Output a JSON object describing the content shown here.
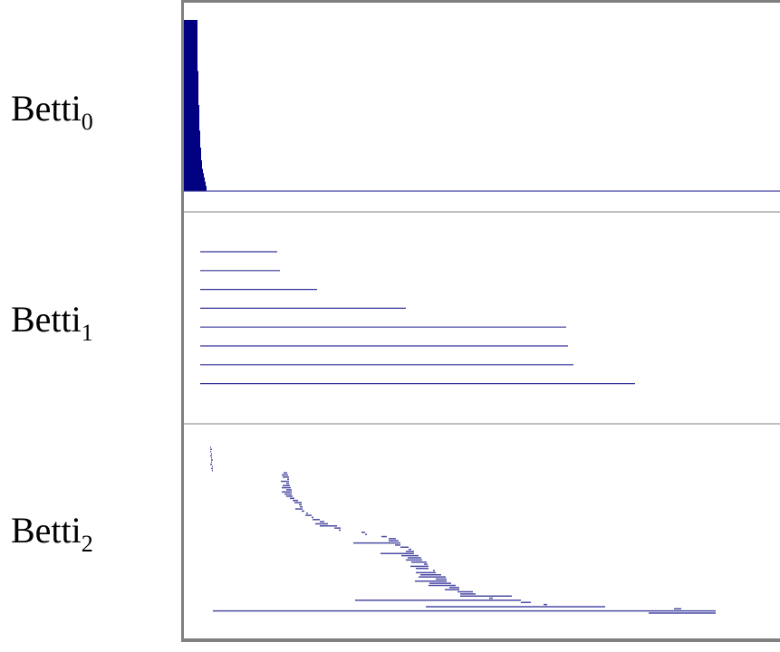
{
  "chart_data": {
    "type": "barcode",
    "xlim": [
      0,
      6.58
    ],
    "grid": false,
    "color": "#000080",
    "divider_color": "#c0c0c0",
    "frame_color": "#808080",
    "panels": [
      {
        "label": "Betti",
        "subscript": "0",
        "bars": [
          [
            0,
            0.15
          ],
          [
            0,
            0.15
          ],
          [
            0,
            0.15
          ],
          [
            0,
            0.15
          ],
          [
            0,
            0.15
          ],
          [
            0,
            0.15
          ],
          [
            0,
            0.15
          ],
          [
            0,
            0.15
          ],
          [
            0,
            0.15
          ],
          [
            0,
            0.15
          ],
          [
            0,
            0.15
          ],
          [
            0,
            0.15
          ],
          [
            0,
            0.16
          ],
          [
            0,
            0.16
          ],
          [
            0,
            0.16
          ],
          [
            0,
            0.16
          ],
          [
            0,
            0.16
          ],
          [
            0,
            0.16
          ],
          [
            0,
            0.16
          ],
          [
            0,
            0.16
          ],
          [
            0,
            0.17
          ],
          [
            0,
            0.17
          ],
          [
            0,
            0.17
          ],
          [
            0,
            0.17
          ],
          [
            0,
            0.17
          ],
          [
            0,
            0.17
          ],
          [
            0,
            0.18
          ],
          [
            0,
            0.18
          ],
          [
            0,
            0.18
          ],
          [
            0,
            0.18
          ],
          [
            0,
            0.19
          ],
          [
            0,
            0.19
          ],
          [
            0,
            0.19
          ],
          [
            0,
            0.2
          ],
          [
            0,
            0.2
          ],
          [
            0,
            0.21
          ],
          [
            0,
            0.22
          ],
          [
            0,
            0.23
          ],
          [
            0,
            0.24
          ],
          [
            0,
            0.25
          ],
          [
            0,
            6.58
          ]
        ]
      },
      {
        "label": "Betti",
        "subscript": "1",
        "bars": [
          [
            0.18,
            1.03
          ],
          [
            0.18,
            1.06
          ],
          [
            0.18,
            1.47
          ],
          [
            0.18,
            2.45
          ],
          [
            0.18,
            4.22
          ],
          [
            0.18,
            4.24
          ],
          [
            0.18,
            4.3
          ],
          [
            0.18,
            4.98
          ]
        ]
      },
      {
        "label": "Betti",
        "subscript": "2",
        "bars": [
          [
            0.29,
            0.3
          ],
          [
            0.29,
            0.31
          ],
          [
            0.29,
            0.3
          ],
          [
            0.3,
            0.31
          ],
          [
            0.29,
            0.31
          ],
          [
            0.3,
            0.31
          ],
          [
            0.3,
            0.32
          ],
          [
            0.3,
            0.31
          ],
          [
            0.29,
            0.31
          ],
          [
            0.31,
            0.32
          ],
          [
            0.3,
            0.32
          ],
          [
            0.31,
            0.32
          ],
          [
            1.1,
            1.14
          ],
          [
            1.08,
            1.15
          ],
          [
            1.09,
            1.16
          ],
          [
            1.14,
            1.16
          ],
          [
            1.07,
            1.16
          ],
          [
            1.13,
            1.16
          ],
          [
            1.09,
            1.17
          ],
          [
            1.08,
            1.18
          ],
          [
            1.13,
            1.19
          ],
          [
            1.08,
            1.19
          ],
          [
            1.11,
            1.19
          ],
          [
            1.13,
            1.2
          ],
          [
            1.17,
            1.22
          ],
          [
            1.2,
            1.26
          ],
          [
            1.22,
            1.3
          ],
          [
            1.27,
            1.3
          ],
          [
            1.28,
            1.31
          ],
          [
            1.23,
            1.31
          ],
          [
            1.3,
            1.33
          ],
          [
            1.35,
            1.37
          ],
          [
            1.34,
            1.41
          ],
          [
            1.41,
            1.43
          ],
          [
            1.42,
            1.5
          ],
          [
            1.5,
            1.55
          ],
          [
            1.45,
            1.59
          ],
          [
            1.5,
            1.69
          ],
          [
            1.66,
            1.73
          ],
          [
            1.71,
            1.73
          ],
          [
            1.96,
            2.0
          ],
          [
            2.0,
            2.02
          ],
          [
            2.18,
            2.24
          ],
          [
            2.26,
            2.34
          ],
          [
            2.26,
            2.37
          ],
          [
            1.87,
            2.39
          ],
          [
            2.33,
            2.39
          ],
          [
            2.39,
            2.48
          ],
          [
            2.48,
            2.51
          ],
          [
            2.45,
            2.54
          ],
          [
            2.17,
            2.54
          ],
          [
            2.4,
            2.59
          ],
          [
            2.47,
            2.62
          ],
          [
            2.45,
            2.63
          ],
          [
            2.51,
            2.68
          ],
          [
            2.65,
            2.69
          ],
          [
            2.5,
            2.7
          ],
          [
            2.56,
            2.7
          ],
          [
            2.75,
            2.77
          ],
          [
            2.56,
            2.78
          ],
          [
            2.61,
            2.84
          ],
          [
            2.59,
            2.89
          ],
          [
            2.78,
            2.9
          ],
          [
            2.55,
            2.9
          ],
          [
            2.71,
            2.95
          ],
          [
            2.7,
            3.0
          ],
          [
            2.93,
            3.04
          ],
          [
            2.88,
            3.04
          ],
          [
            3.02,
            3.19
          ],
          [
            3.05,
            3.22
          ],
          [
            3.05,
            3.62
          ],
          [
            3.37,
            3.41
          ],
          [
            1.89,
            3.72
          ],
          [
            3.72,
            3.83
          ],
          [
            3.97,
            4.01
          ],
          [
            2.67,
            4.65
          ],
          [
            5.41,
            5.49
          ],
          [
            0.32,
            5.87
          ],
          [
            5.13,
            5.87
          ]
        ]
      }
    ]
  }
}
